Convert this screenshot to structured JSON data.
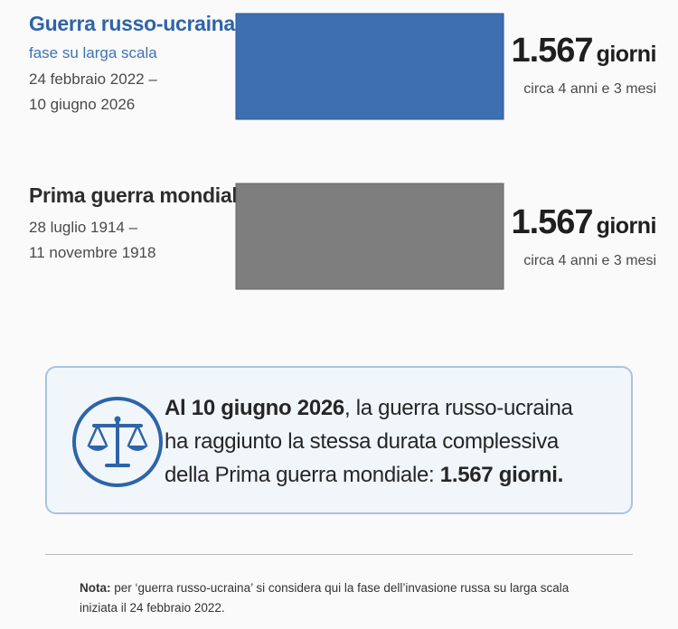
{
  "chart_data": {
    "type": "bar",
    "orientation": "horizontal",
    "categories": [
      "Guerra russo-ucraina",
      "Prima guerra mondiale"
    ],
    "values": [
      1567,
      1567
    ],
    "unit": "giorni",
    "colors": [
      "#3d6fb1",
      "#7e7e7e"
    ],
    "series": [
      {
        "name": "Guerra russo-ucraina",
        "subtitle": "fase su larga scala",
        "dates_line1": "24 febbraio 2022 –",
        "dates_line2": "10 giugno 2026",
        "value": 1567,
        "value_label": "1.567",
        "unit_label": "giorni",
        "approx": "circa 4 anni e 3 mesi",
        "color": "#3d6fb1"
      },
      {
        "name": "Prima guerra mondiale",
        "dates_line1": "28 luglio 1914 –",
        "dates_line2": "11 novembre 1918",
        "value": 1567,
        "value_label": "1.567",
        "unit_label": "giorni",
        "approx": "circa 4 anni e 3 mesi",
        "color": "#7e7e7e"
      }
    ]
  },
  "callout": {
    "part1": "Al 10 giugno 2026",
    "part2": ", la guerra russo-ucraina",
    "line2": "ha raggiunto la stessa durata complessiva",
    "line3": "della Prima guerra mondiale: ",
    "highlight": "1.567 giorni.",
    "icon": "scale-icon",
    "accent_color": "#2e64a8"
  },
  "note": {
    "label": "Nota:",
    "text": " per ‘guerra russo-ucraina’ si considera qui la fase dell’invasione russa su larga scala iniziata il 24 febbraio 2022."
  }
}
